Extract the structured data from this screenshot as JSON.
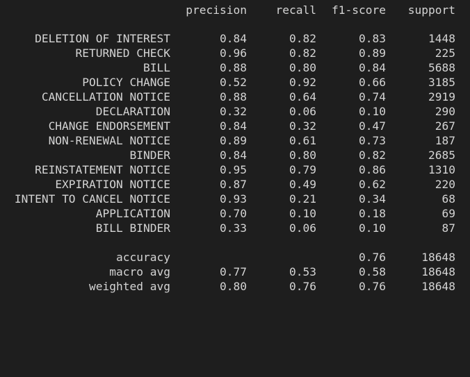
{
  "header": {
    "precision": "precision",
    "recall": "recall",
    "f1": "f1-score",
    "support": "support"
  },
  "rows": [
    {
      "label": "DELETION OF INTEREST",
      "precision": "0.84",
      "recall": "0.82",
      "f1": "0.83",
      "support": "1448"
    },
    {
      "label": "RETURNED CHECK",
      "precision": "0.96",
      "recall": "0.82",
      "f1": "0.89",
      "support": "225"
    },
    {
      "label": "BILL",
      "precision": "0.88",
      "recall": "0.80",
      "f1": "0.84",
      "support": "5688"
    },
    {
      "label": "POLICY CHANGE",
      "precision": "0.52",
      "recall": "0.92",
      "f1": "0.66",
      "support": "3185"
    },
    {
      "label": "CANCELLATION NOTICE",
      "precision": "0.88",
      "recall": "0.64",
      "f1": "0.74",
      "support": "2919"
    },
    {
      "label": "DECLARATION",
      "precision": "0.32",
      "recall": "0.06",
      "f1": "0.10",
      "support": "290"
    },
    {
      "label": "CHANGE ENDORSEMENT",
      "precision": "0.84",
      "recall": "0.32",
      "f1": "0.47",
      "support": "267"
    },
    {
      "label": "NON-RENEWAL NOTICE",
      "precision": "0.89",
      "recall": "0.61",
      "f1": "0.73",
      "support": "187"
    },
    {
      "label": "BINDER",
      "precision": "0.84",
      "recall": "0.80",
      "f1": "0.82",
      "support": "2685"
    },
    {
      "label": "REINSTATEMENT NOTICE",
      "precision": "0.95",
      "recall": "0.79",
      "f1": "0.86",
      "support": "1310"
    },
    {
      "label": "EXPIRATION NOTICE",
      "precision": "0.87",
      "recall": "0.49",
      "f1": "0.62",
      "support": "220"
    },
    {
      "label": "INTENT TO CANCEL NOTICE",
      "precision": "0.93",
      "recall": "0.21",
      "f1": "0.34",
      "support": "68"
    },
    {
      "label": "APPLICATION",
      "precision": "0.70",
      "recall": "0.10",
      "f1": "0.18",
      "support": "69"
    },
    {
      "label": "BILL BINDER",
      "precision": "0.33",
      "recall": "0.06",
      "f1": "0.10",
      "support": "87"
    }
  ],
  "summary": [
    {
      "label": "accuracy",
      "precision": "",
      "recall": "",
      "f1": "0.76",
      "support": "18648"
    },
    {
      "label": "macro avg",
      "precision": "0.77",
      "recall": "0.53",
      "f1": "0.58",
      "support": "18648"
    },
    {
      "label": "weighted avg",
      "precision": "0.80",
      "recall": "0.76",
      "f1": "0.76",
      "support": "18648"
    }
  ],
  "colors": {
    "background": "#1e1e1e",
    "text": "#d4d4d4"
  }
}
